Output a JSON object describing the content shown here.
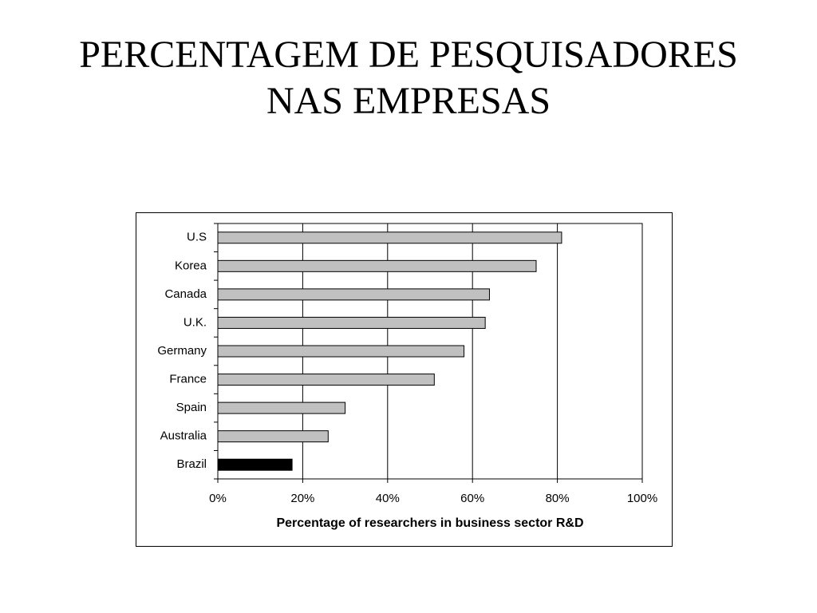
{
  "chart_data": {
    "type": "hbar",
    "title": "PERCENTAGEM DE PESQUISADORES NAS EMPRESAS",
    "x_label": "Percentage of researchers in business sector R&D",
    "categories": [
      "U.S",
      "Korea",
      "Canada",
      "U.K.",
      "Germany",
      "France",
      "Spain",
      "Australia",
      "Brazil"
    ],
    "values": [
      81,
      75,
      64,
      63,
      58,
      51,
      30,
      26,
      17.5
    ],
    "colors": [
      "#c0c0c0",
      "#c0c0c0",
      "#c0c0c0",
      "#c0c0c0",
      "#c0c0c0",
      "#c0c0c0",
      "#c0c0c0",
      "#c0c0c0",
      "#000000"
    ],
    "xlim": [
      0,
      100
    ],
    "xticks": [
      {
        "value": 0,
        "label": "0%"
      },
      {
        "value": 20,
        "label": "20%"
      },
      {
        "value": 40,
        "label": "40%"
      },
      {
        "value": 60,
        "label": "60%"
      },
      {
        "value": 80,
        "label": "80%"
      },
      {
        "value": 100,
        "label": "100%"
      }
    ],
    "grid": true
  }
}
